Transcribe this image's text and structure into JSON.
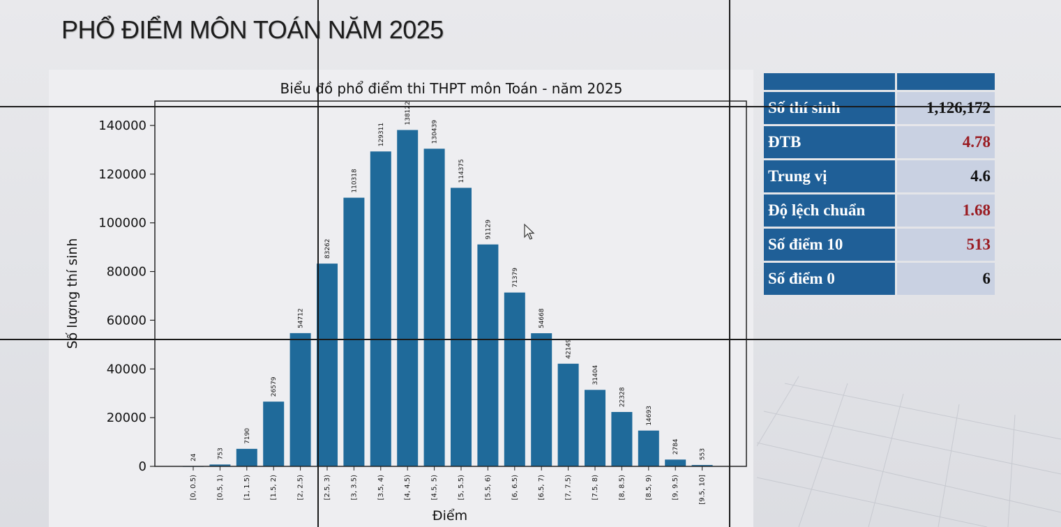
{
  "slide_title": "PHỔ ĐIỂM MÔN TOÁN NĂM 2025",
  "stats": {
    "rows": [
      {
        "label": "Số thí sinh",
        "value": "1,126,172",
        "value_color": "#111111"
      },
      {
        "label": "ĐTB",
        "value": "4.78",
        "value_color": "#9a1c22"
      },
      {
        "label": "Trung vị",
        "value": "4.6",
        "value_color": "#111111"
      },
      {
        "label": "Độ lệch chuẩn",
        "value": "1.68",
        "value_color": "#9a1c22"
      },
      {
        "label": "Số điểm 10",
        "value": "513",
        "value_color": "#9a1c22"
      },
      {
        "label": "Số điểm 0",
        "value": "6",
        "value_color": "#111111"
      }
    ]
  },
  "chart_data": {
    "type": "bar",
    "title": "Biểu đồ phổ điểm thi THPT môn Toán - năm 2025",
    "xlabel": "Điểm",
    "ylabel": "Số lượng thí sinh",
    "categories": [
      "[0, 0.5)",
      "[0.5, 1)",
      "[1, 1.5)",
      "[1.5, 2)",
      "[2, 2.5)",
      "[2.5, 3)",
      "[3, 3.5)",
      "[3.5, 4)",
      "[4, 4.5)",
      "[4.5, 5)",
      "[5, 5.5)",
      "[5.5, 6)",
      "[6, 6.5)",
      "[6.5, 7)",
      "[7, 7.5)",
      "[7.5, 8)",
      "[8, 8.5)",
      "[8.5, 9)",
      "[9, 9.5)",
      "[9.5, 10]"
    ],
    "values": [
      24,
      753,
      7190,
      26579,
      54712,
      83262,
      110318,
      129311,
      138122,
      130439,
      114375,
      91129,
      71379,
      54668,
      42149,
      31404,
      22328,
      14693,
      2784,
      553
    ],
    "ylim": [
      0,
      150000
    ],
    "yticks": [
      0,
      20000,
      40000,
      60000,
      80000,
      100000,
      120000,
      140000
    ],
    "bar_color": "#1f6a9a",
    "grid": false,
    "legend": "none"
  }
}
